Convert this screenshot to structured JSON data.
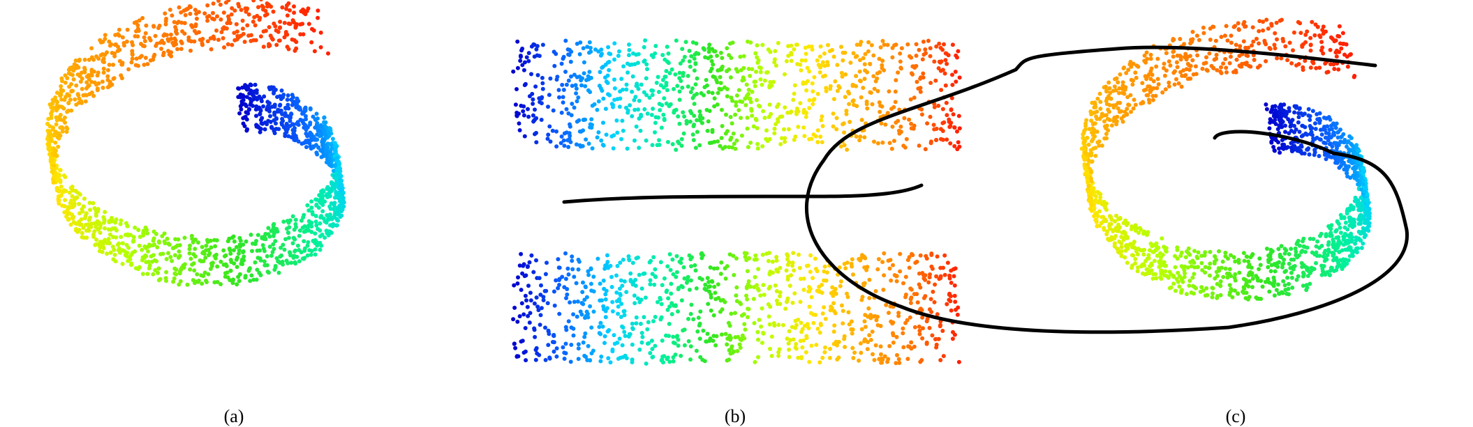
{
  "captions": {
    "a": "(a)",
    "b": "(b)",
    "c": "(c)"
  },
  "colormap": [
    "#0000cd",
    "#0a64ff",
    "#00d2ff",
    "#00f0a0",
    "#32e61e",
    "#b4ff00",
    "#ffe600",
    "#ffaa00",
    "#ff7800",
    "#ff1e00"
  ]
}
